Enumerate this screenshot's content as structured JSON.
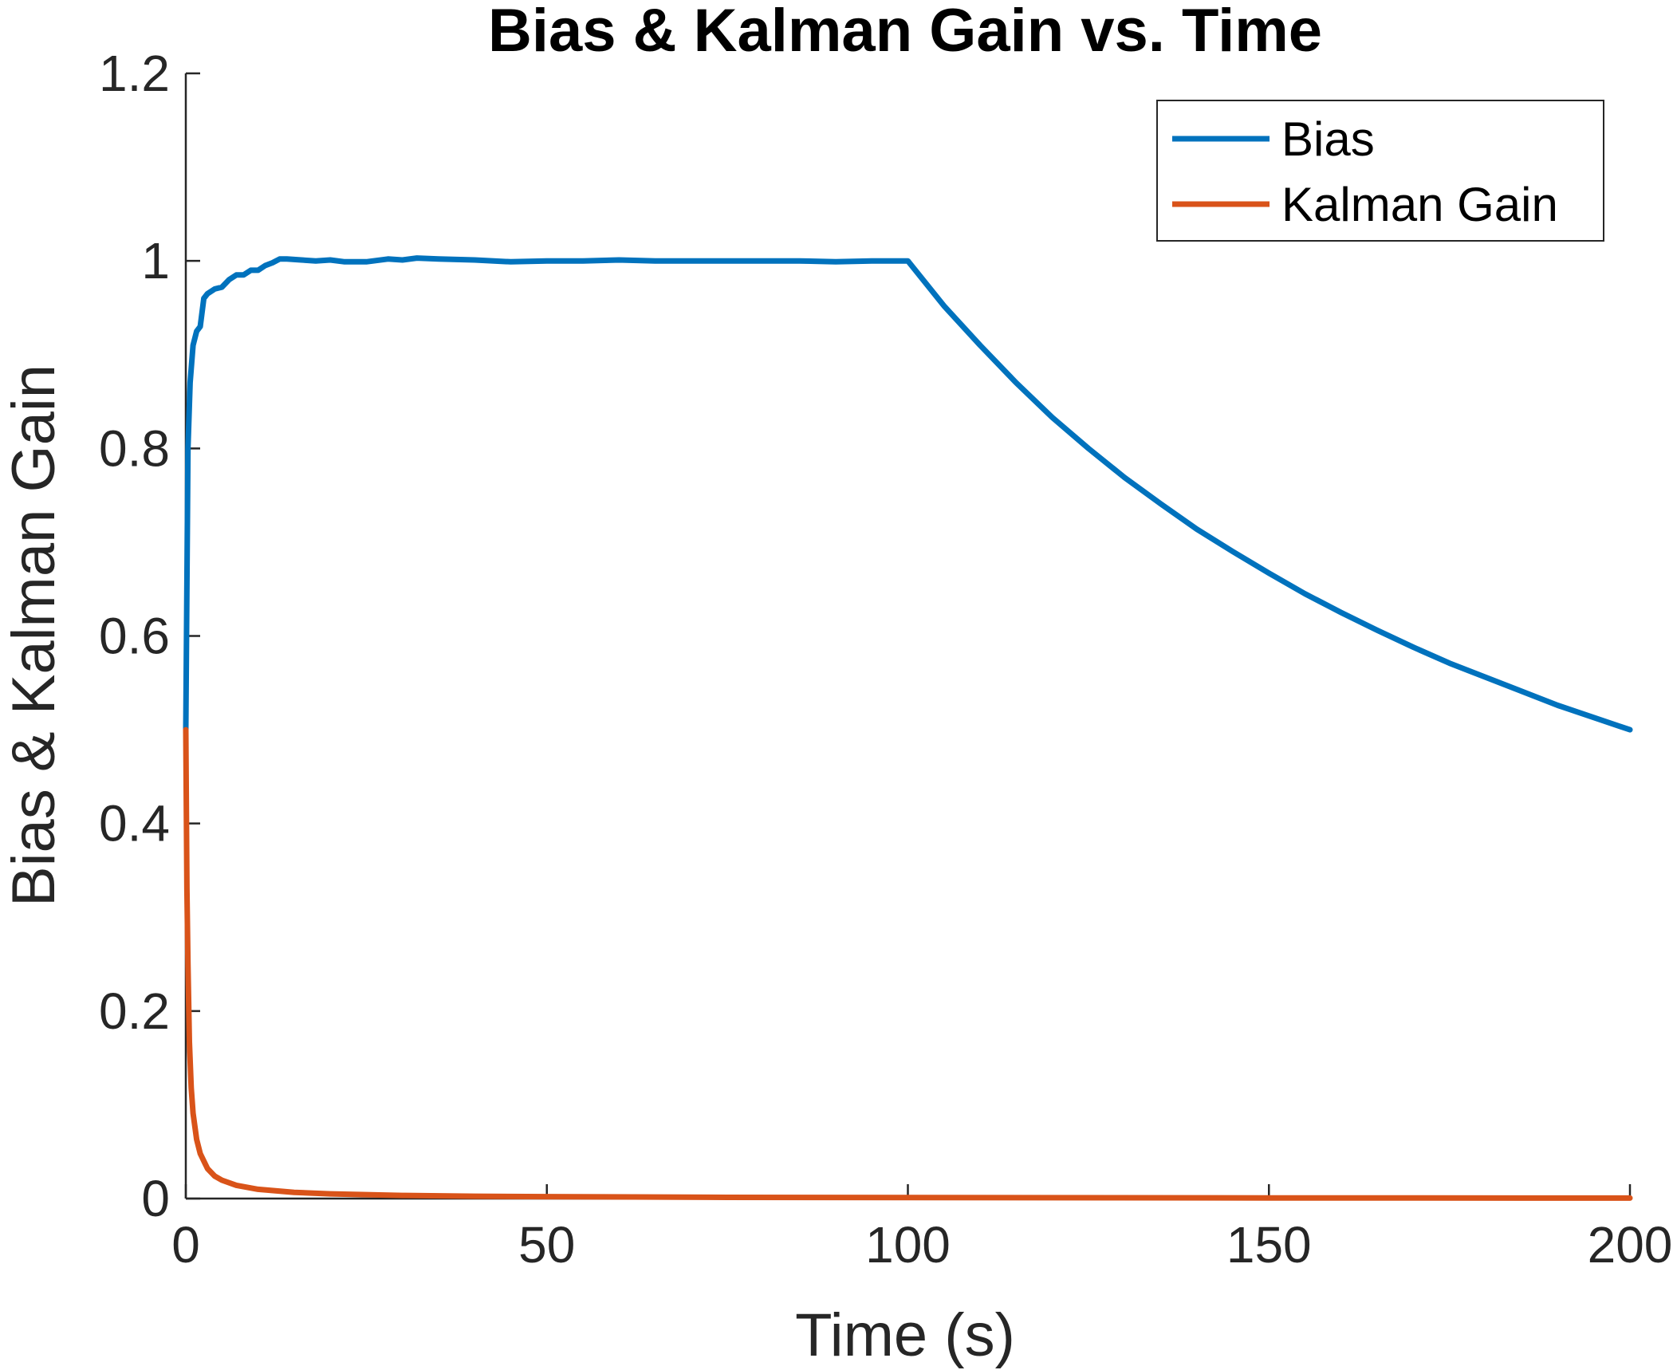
{
  "chart_data": {
    "type": "line",
    "title": "Bias & Kalman Gain vs. Time",
    "xlabel": "Time (s)",
    "ylabel": "Bias & Kalman Gain",
    "xlim": [
      0,
      200
    ],
    "ylim": [
      0,
      1.2
    ],
    "xticks": [
      0,
      50,
      100,
      150,
      200
    ],
    "xtick_labels": [
      "0",
      "50",
      "100",
      "150",
      "200"
    ],
    "yticks": [
      0,
      0.2,
      0.4,
      0.6,
      0.8,
      1.0,
      1.2
    ],
    "ytick_labels": [
      "0",
      "0.2",
      "0.4",
      "0.6",
      "0.8",
      "1",
      "1.2"
    ],
    "grid": false,
    "legend_position": "top-right",
    "series": [
      {
        "name": "Bias",
        "color": "#0072BD",
        "x": [
          0,
          0.3,
          0.6,
          1,
          1.5,
          2,
          2.5,
          3,
          4,
          5,
          6,
          7,
          8,
          9,
          10,
          11,
          12,
          13,
          14,
          16,
          18,
          20,
          22,
          25,
          28,
          30,
          32,
          35,
          40,
          45,
          50,
          55,
          60,
          65,
          70,
          75,
          80,
          85,
          90,
          95,
          100,
          105,
          110,
          115,
          120,
          125,
          130,
          135,
          140,
          145,
          150,
          155,
          160,
          165,
          170,
          175,
          180,
          185,
          190,
          195,
          200
        ],
        "values": [
          0.5,
          0.8,
          0.87,
          0.91,
          0.925,
          0.93,
          0.96,
          0.965,
          0.97,
          0.972,
          0.98,
          0.985,
          0.985,
          0.99,
          0.99,
          0.995,
          0.998,
          1.002,
          1.002,
          1.001,
          1.0,
          1.001,
          0.999,
          0.999,
          1.002,
          1.001,
          1.003,
          1.002,
          1.001,
          0.999,
          1.0,
          1.0,
          1.001,
          1.0,
          1.0,
          1.0,
          1.0,
          1.0,
          0.999,
          1.0,
          1.0,
          0.952,
          0.91,
          0.87,
          0.833,
          0.8,
          0.769,
          0.741,
          0.714,
          0.69,
          0.667,
          0.645,
          0.625,
          0.606,
          0.588,
          0.571,
          0.556,
          0.541,
          0.526,
          0.513,
          0.5
        ]
      },
      {
        "name": "Kalman Gain",
        "color": "#D95319",
        "x": [
          0,
          0.15,
          0.3,
          0.5,
          0.75,
          1,
          1.5,
          2,
          3,
          4,
          5,
          7,
          10,
          15,
          20,
          30,
          40,
          50,
          75,
          100,
          150,
          200
        ],
        "values": [
          0.5,
          0.33,
          0.25,
          0.167,
          0.118,
          0.091,
          0.063,
          0.048,
          0.032,
          0.024,
          0.0196,
          0.0141,
          0.0099,
          0.0066,
          0.005,
          0.0033,
          0.0025,
          0.002,
          0.0013,
          0.001,
          0.0007,
          0.0005
        ]
      }
    ]
  }
}
